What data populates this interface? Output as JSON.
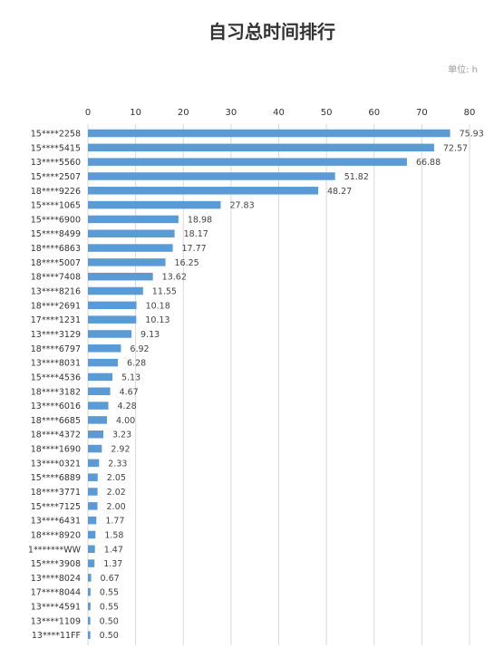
{
  "chart_data": {
    "type": "bar",
    "orientation": "horizontal",
    "title": "自习总时间排行",
    "unit_label": "单位: h",
    "xlim": [
      0,
      80
    ],
    "x_ticks": [
      "0",
      "10",
      "20",
      "30",
      "40",
      "50",
      "60",
      "70",
      "80"
    ],
    "grid": true,
    "bar_color": "#5b9bd5",
    "categories": [
      "15****2258",
      "15****5415",
      "13****5560",
      "15****2507",
      "18****9226",
      "15****1065",
      "15****6900",
      "15****8499",
      "18****6863",
      "18****5007",
      "18****7408",
      "13****8216",
      "18****2691",
      "17****1231",
      "13****3129",
      "18****6797",
      "13****8031",
      "15****4536",
      "18****3182",
      "13****6016",
      "18****6685",
      "18****4372",
      "18****1690",
      "13****0321",
      "15****6889",
      "18****3771",
      "15****7125",
      "13****6431",
      "18****8920",
      "1*******WW",
      "15****3908",
      "13****8024",
      "17****8044",
      "13****4591",
      "13****1109",
      "13****11FF"
    ],
    "values": [
      75.93,
      72.57,
      66.88,
      51.82,
      48.27,
      27.83,
      18.98,
      18.17,
      17.77,
      16.25,
      13.62,
      11.55,
      10.18,
      10.13,
      9.13,
      6.92,
      6.28,
      5.13,
      4.67,
      4.28,
      4.0,
      3.23,
      2.92,
      2.33,
      2.05,
      2.02,
      2.0,
      1.77,
      1.58,
      1.47,
      1.37,
      0.67,
      0.55,
      0.55,
      0.5,
      0.5
    ],
    "value_labels": [
      "75.93",
      "72.57",
      "66.88",
      "51.82",
      "48.27",
      "27.83",
      "18.98",
      "18.17",
      "17.77",
      "16.25",
      "13.62",
      "11.55",
      "10.18",
      "10.13",
      "9.13",
      "6.92",
      "6.28",
      "5.13",
      "4.67",
      "4.28",
      "4.00",
      "3.23",
      "2.92",
      "2.33",
      "2.05",
      "2.02",
      "2.00",
      "1.77",
      "1.58",
      "1.47",
      "1.37",
      "0.67",
      "0.55",
      "0.55",
      "0.50",
      "0.50"
    ]
  }
}
